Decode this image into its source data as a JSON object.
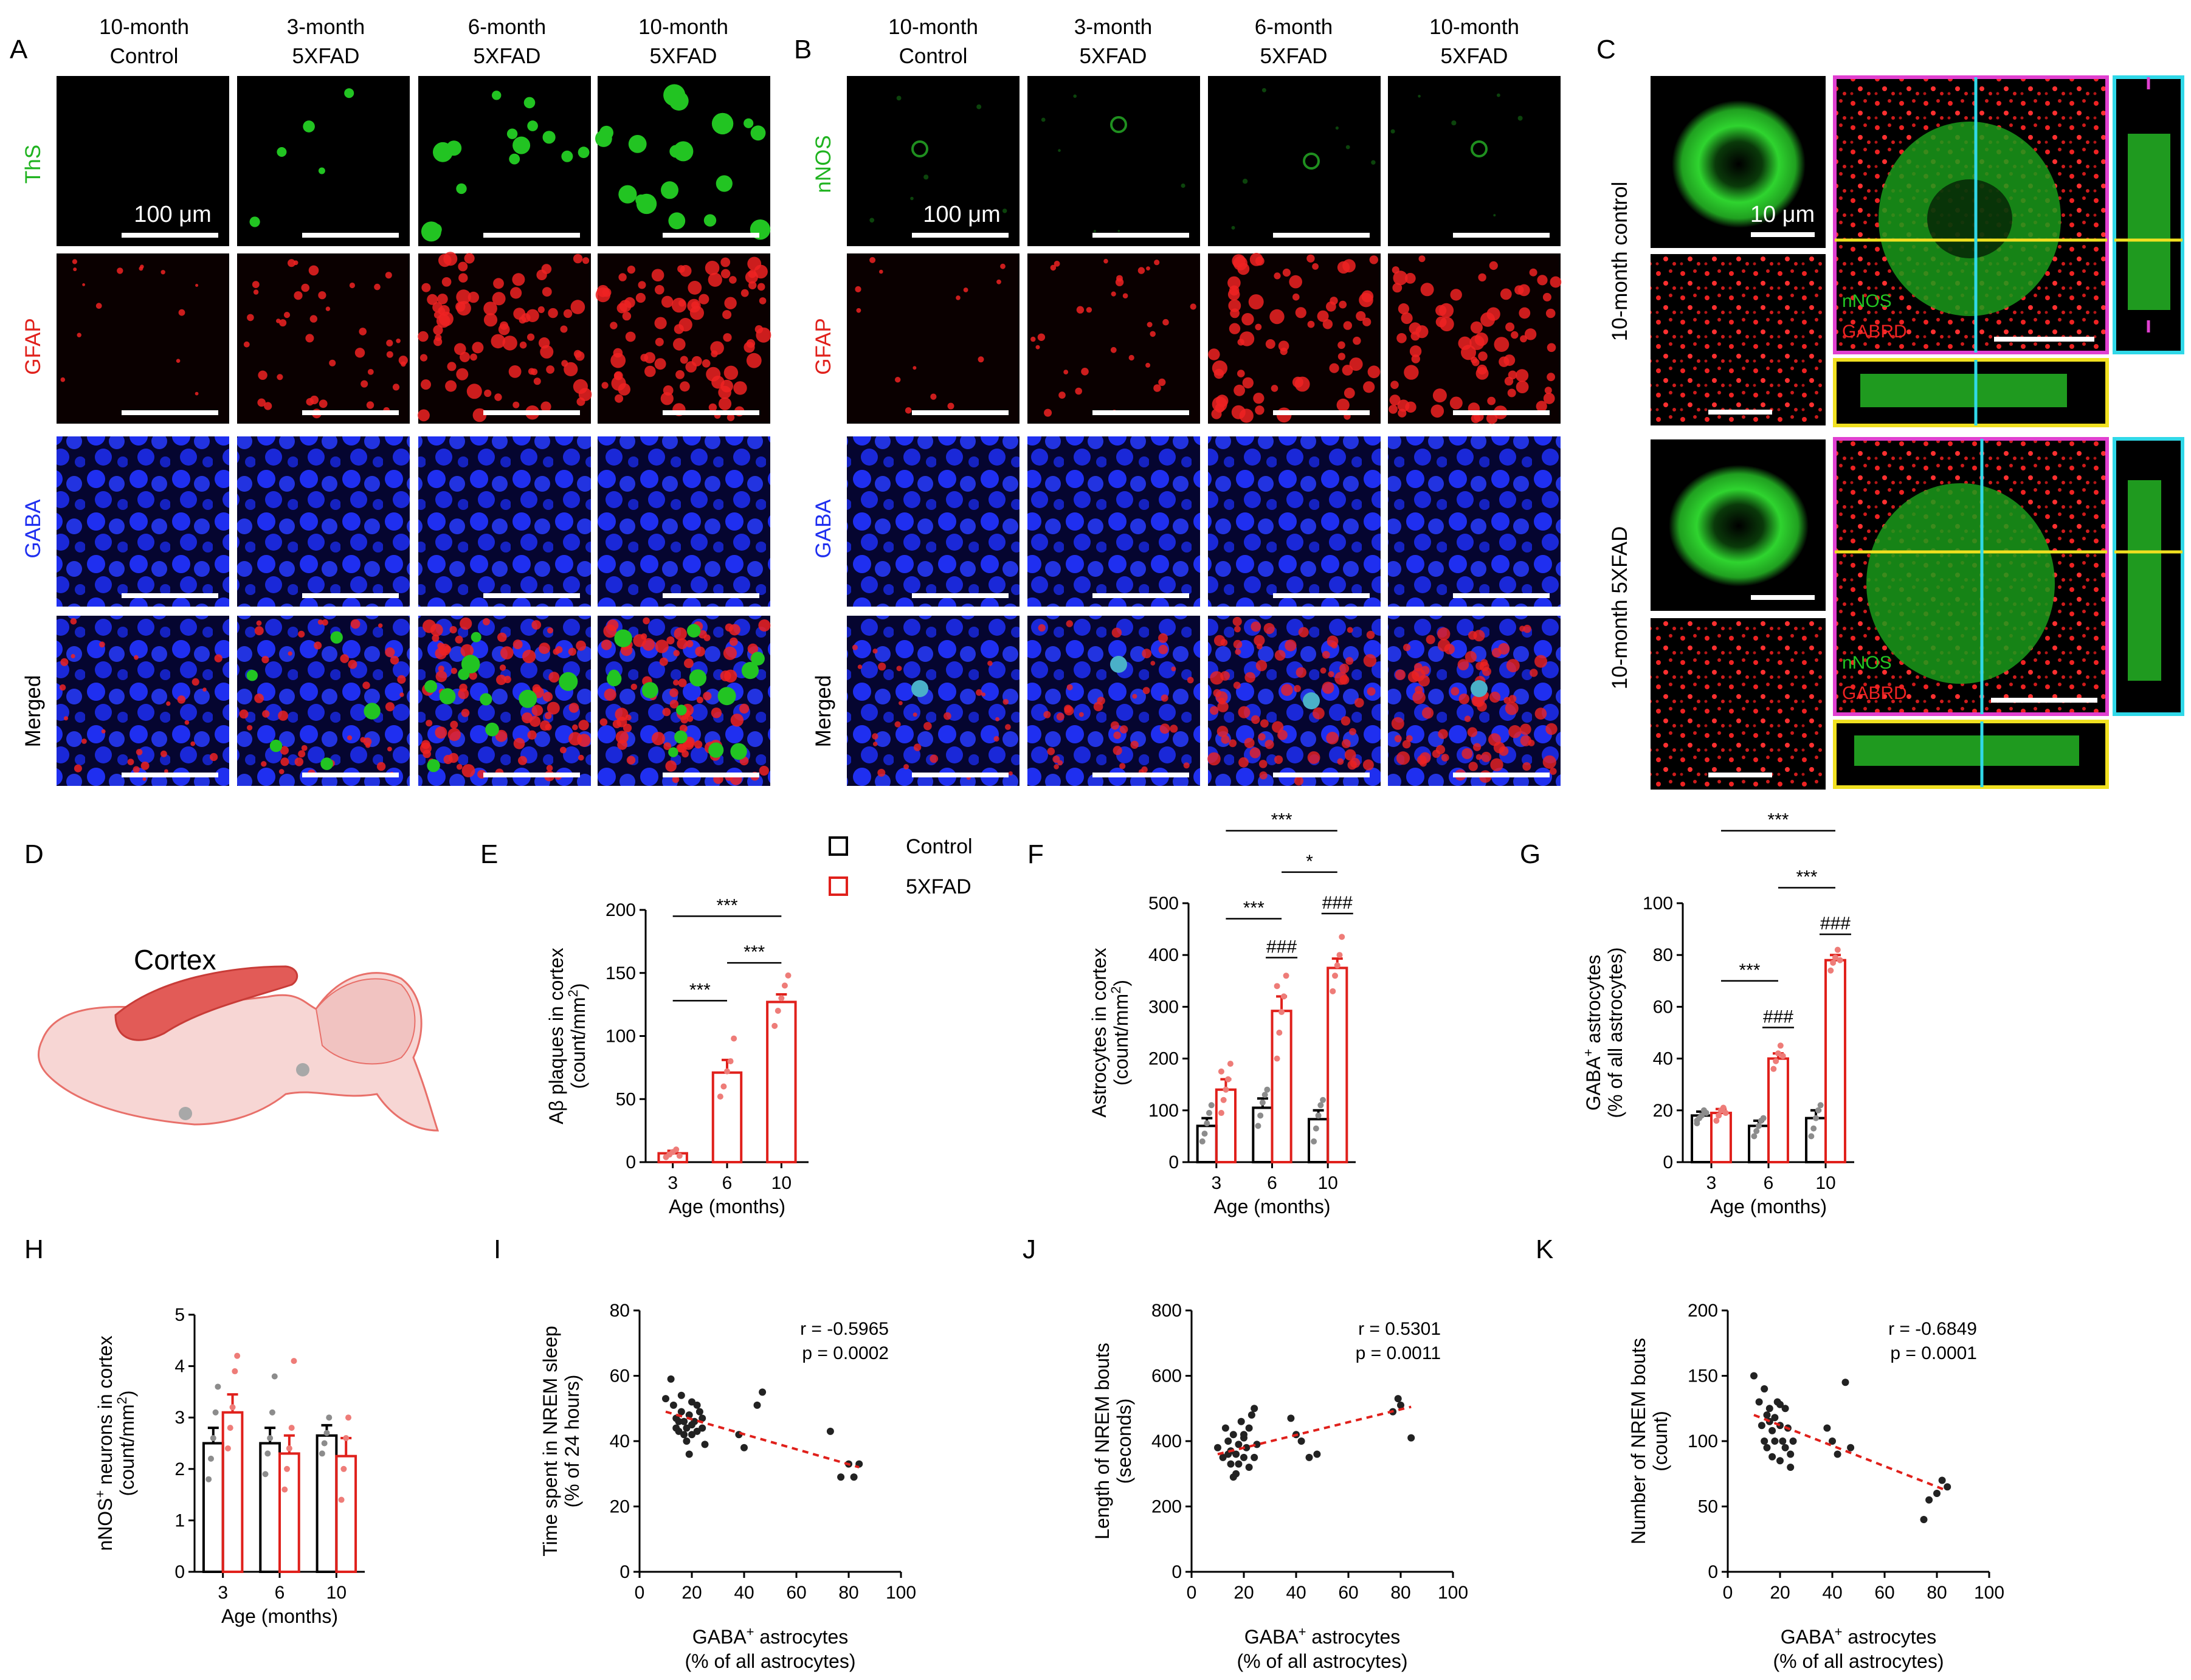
{
  "panels": {
    "A": "A",
    "B": "B",
    "C": "C",
    "D": "D",
    "E": "E",
    "F": "F",
    "G": "G",
    "H": "H",
    "I": "I",
    "J": "J",
    "K": "K"
  },
  "colors": {
    "control": "#000000",
    "fad": "#e0201b",
    "dot_control": "#8c8c8c",
    "dot_fad": "#ee7c78",
    "regression": "#e0201b",
    "scatter_dot": "#222222",
    "green": "#22c422",
    "red": "#ee2222",
    "blue": "#1f2ff0",
    "magenta": "#e040d0",
    "cyan": "#30d8e8",
    "yellow": "#f0e020"
  },
  "micro": {
    "col_headers": [
      {
        "line1": "10-month",
        "line2": "Control"
      },
      {
        "line1": "3-month",
        "line2": "5XFAD"
      },
      {
        "line1": "6-month",
        "line2": "5XFAD"
      },
      {
        "line1": "10-month",
        "line2": "5XFAD"
      }
    ],
    "rows_A": [
      "ThS",
      "GFAP",
      "GABA",
      "Merged"
    ],
    "rows_B": [
      "nNOS",
      "GFAP",
      "GABA",
      "Merged"
    ],
    "scale_A": "100 μm",
    "scale_B": "100 μm",
    "scale_C": "10 μm",
    "C_rows": [
      "10-month control",
      "10-month 5XFAD"
    ],
    "C_ortho_label1": "nNOS",
    "C_ortho_label2": "GABRD"
  },
  "diagram": {
    "region_label": "Cortex"
  },
  "legend": {
    "control": "Control",
    "fad": "5XFAD"
  },
  "chart_data": [
    {
      "panel": "E",
      "type": "bar",
      "categories": [
        "3",
        "6",
        "10"
      ],
      "xlabel": "Age (months)",
      "ylabel_line1": "Aβ plaques in cortex",
      "ylabel_line2": "(count/mm",
      "ylabel_sup": "2",
      "ylabel_end": ")",
      "ylim": [
        0,
        200
      ],
      "yticks": [
        0,
        50,
        100,
        150,
        200
      ],
      "series": [
        {
          "name": "5XFAD",
          "values": [
            7,
            71,
            127
          ],
          "errors": [
            2,
            10,
            6
          ],
          "points": [
            [
              4,
              6,
              8,
              10,
              5
            ],
            [
              52,
              60,
              72,
              80,
              98
            ],
            [
              108,
              120,
              130,
              140,
              148
            ]
          ]
        }
      ],
      "significance": [
        {
          "from": 0,
          "to": 1,
          "label": "***",
          "level": 128
        },
        {
          "from": 1,
          "to": 2,
          "label": "***",
          "level": 158
        },
        {
          "from": 0,
          "to": 2,
          "label": "***",
          "level": 195
        }
      ]
    },
    {
      "panel": "F",
      "type": "bar",
      "categories": [
        "3",
        "6",
        "10"
      ],
      "xlabel": "Age (months)",
      "ylabel_line1": "Astrocytes in cortex",
      "ylabel_line2": "(count/mm",
      "ylabel_sup": "2",
      "ylabel_end": ")",
      "ylim": [
        0,
        500
      ],
      "yticks": [
        0,
        100,
        200,
        300,
        400,
        500
      ],
      "series": [
        {
          "name": "Control",
          "values": [
            70,
            105,
            83
          ],
          "errors": [
            15,
            18,
            17
          ],
          "points": [
            [
              40,
              55,
              75,
              95,
              110
            ],
            [
              70,
              90,
              115,
              130,
              140
            ],
            [
              40,
              65,
              90,
              110,
              120
            ]
          ]
        },
        {
          "name": "5XFAD",
          "values": [
            140,
            292,
            375
          ],
          "errors": [
            20,
            28,
            18
          ],
          "points": [
            [
              95,
              120,
              140,
              160,
              190,
              175
            ],
            [
              200,
              250,
              290,
              320,
              360,
              340
            ],
            [
              330,
              360,
              380,
              400,
              435
            ]
          ]
        }
      ],
      "significance_hash": [
        {
          "group": 1,
          "label": "###",
          "level": 395
        },
        {
          "group": 2,
          "label": "###",
          "level": 480
        }
      ],
      "significance": [
        {
          "from": 0,
          "to": 1,
          "label": "***",
          "level": 470
        },
        {
          "from": 1,
          "to": 2,
          "label": "*",
          "level": 560
        },
        {
          "from": 0,
          "to": 2,
          "label": "***",
          "level": 640
        }
      ]
    },
    {
      "panel": "G",
      "type": "bar",
      "categories": [
        "3",
        "6",
        "10"
      ],
      "xlabel": "Age (months)",
      "ylabel_line1": "GABA",
      "ylabel_sup1": "+",
      "ylabel_line1_end": " astrocytes",
      "ylabel_line2": "(% of all astrocytes)",
      "ylim": [
        0,
        100
      ],
      "yticks": [
        0,
        20,
        40,
        60,
        80,
        100
      ],
      "series": [
        {
          "name": "Control",
          "values": [
            18,
            14,
            17
          ],
          "errors": [
            1.5,
            2,
            3
          ],
          "points": [
            [
              15,
              17,
              18,
              20,
              19,
              16
            ],
            [
              10,
              12,
              14,
              16,
              17
            ],
            [
              10,
              13,
              17,
              20,
              22
            ]
          ]
        },
        {
          "name": "5XFAD",
          "values": [
            19,
            40,
            78
          ],
          "errors": [
            1.5,
            2,
            2
          ],
          "points": [
            [
              16,
              18,
              20,
              21,
              19
            ],
            [
              36,
              39,
              42,
              45,
              41
            ],
            [
              74,
              77,
              79,
              82,
              78
            ]
          ]
        }
      ],
      "significance_hash": [
        {
          "group": 1,
          "label": "###",
          "level": 52
        },
        {
          "group": 2,
          "label": "###",
          "level": 88
        }
      ],
      "significance": [
        {
          "from": 0,
          "to": 1,
          "label": "***",
          "level": 70
        },
        {
          "from": 1,
          "to": 2,
          "label": "***",
          "level": 106
        },
        {
          "from": 0,
          "to": 2,
          "label": "***",
          "level": 128
        }
      ]
    },
    {
      "panel": "H",
      "type": "bar",
      "categories": [
        "3",
        "6",
        "10"
      ],
      "xlabel": "Age (months)",
      "ylabel_line1": "nNOS",
      "ylabel_sup1": "+",
      "ylabel_line1_end": " neurons in cortex",
      "ylabel_line2": "(count/mm",
      "ylabel_sup": "2",
      "ylabel_end": ")",
      "ylim": [
        0,
        5
      ],
      "yticks": [
        0,
        1,
        2,
        3,
        4,
        5
      ],
      "series": [
        {
          "name": "Control",
          "values": [
            2.5,
            2.5,
            2.65
          ],
          "errors": [
            0.3,
            0.3,
            0.2
          ],
          "points": [
            [
              1.8,
              2.2,
              2.6,
              3.1,
              3.6
            ],
            [
              1.9,
              2.3,
              2.6,
              3.1,
              3.8
            ],
            [
              2.3,
              2.5,
              2.7,
              3.0
            ]
          ]
        },
        {
          "name": "5XFAD",
          "values": [
            3.1,
            2.3,
            2.25
          ],
          "errors": [
            0.35,
            0.35,
            0.35
          ],
          "points": [
            [
              2.4,
              2.8,
              3.2,
              3.9,
              4.2
            ],
            [
              1.6,
              2.0,
              2.4,
              2.8,
              4.1
            ],
            [
              1.4,
              2.0,
              2.6,
              3.0
            ]
          ]
        }
      ]
    },
    {
      "panel": "I",
      "type": "scatter",
      "xlabel_line1": "GABA",
      "xlabel_sup": "+",
      "xlabel_line1_end": " astrocytes",
      "xlabel_line2": "(% of all astrocytes)",
      "ylabel_line1": "Time spent in NREM sleep",
      "ylabel_line2": "(% of 24 hours)",
      "xlim": [
        0,
        100
      ],
      "xticks": [
        0,
        20,
        40,
        60,
        80,
        100
      ],
      "ylim": [
        0,
        80
      ],
      "yticks": [
        0,
        20,
        40,
        60,
        80
      ],
      "stat_r": "r = -0.5965",
      "stat_p": "p = 0.0002",
      "fit": {
        "x0": 10,
        "y0": 49,
        "x1": 84,
        "y1": 32
      },
      "points": [
        [
          10,
          53
        ],
        [
          12,
          59
        ],
        [
          13,
          51
        ],
        [
          14,
          47
        ],
        [
          15,
          46
        ],
        [
          15,
          43
        ],
        [
          16,
          54
        ],
        [
          17,
          46
        ],
        [
          17,
          42
        ],
        [
          18,
          44
        ],
        [
          18,
          40
        ],
        [
          19,
          36
        ],
        [
          19,
          48
        ],
        [
          20,
          45
        ],
        [
          20,
          42
        ],
        [
          21,
          46
        ],
        [
          22,
          43
        ],
        [
          22,
          51
        ],
        [
          23,
          49
        ],
        [
          24,
          44
        ],
        [
          24,
          47
        ],
        [
          25,
          39
        ],
        [
          20,
          52
        ],
        [
          16,
          49
        ],
        [
          14,
          44
        ],
        [
          38,
          42
        ],
        [
          40,
          38
        ],
        [
          45,
          51
        ],
        [
          47,
          55
        ],
        [
          73,
          43
        ],
        [
          77,
          29
        ],
        [
          80,
          33
        ],
        [
          82,
          29
        ],
        [
          84,
          33
        ]
      ]
    },
    {
      "panel": "J",
      "type": "scatter",
      "xlabel_line1": "GABA",
      "xlabel_sup": "+",
      "xlabel_line1_end": " astrocytes",
      "xlabel_line2": "(% of all astrocytes)",
      "ylabel_line1": "Length of NREM bouts",
      "ylabel_line2": "(seconds)",
      "xlim": [
        0,
        100
      ],
      "xticks": [
        0,
        20,
        40,
        60,
        80,
        100
      ],
      "ylim": [
        0,
        800
      ],
      "yticks": [
        0,
        200,
        400,
        600,
        800
      ],
      "stat_r": "r = 0.5301",
      "stat_p": "p = 0.0011",
      "fit": {
        "x0": 10,
        "y0": 360,
        "x1": 84,
        "y1": 505
      },
      "points": [
        [
          10,
          380
        ],
        [
          12,
          350
        ],
        [
          13,
          440
        ],
        [
          14,
          400
        ],
        [
          15,
          330
        ],
        [
          15,
          370
        ],
        [
          16,
          420
        ],
        [
          17,
          360
        ],
        [
          17,
          300
        ],
        [
          18,
          390
        ],
        [
          18,
          330
        ],
        [
          19,
          460
        ],
        [
          20,
          350
        ],
        [
          20,
          410
        ],
        [
          21,
          380
        ],
        [
          22,
          440
        ],
        [
          22,
          320
        ],
        [
          23,
          480
        ],
        [
          24,
          500
        ],
        [
          24,
          350
        ],
        [
          25,
          390
        ],
        [
          16,
          290
        ],
        [
          14,
          360
        ],
        [
          20,
          420
        ],
        [
          38,
          470
        ],
        [
          40,
          420
        ],
        [
          42,
          400
        ],
        [
          45,
          350
        ],
        [
          48,
          360
        ],
        [
          77,
          490
        ],
        [
          79,
          530
        ],
        [
          80,
          510
        ],
        [
          84,
          410
        ]
      ]
    },
    {
      "panel": "K",
      "type": "scatter",
      "xlabel_line1": "GABA",
      "xlabel_sup": "+",
      "xlabel_line1_end": " astrocytes",
      "xlabel_line2": "(% of all astrocytes)",
      "ylabel_line1": "Number of NREM bouts",
      "ylabel_line2": "(count)",
      "xlim": [
        0,
        100
      ],
      "xticks": [
        0,
        20,
        40,
        60,
        80,
        100
      ],
      "ylim": [
        0,
        200
      ],
      "yticks": [
        0,
        50,
        100,
        150,
        200
      ],
      "stat_r": "r = -0.6849",
      "stat_p": "p = 0.0001",
      "fit": {
        "x0": 10,
        "y0": 120,
        "x1": 84,
        "y1": 62
      },
      "points": [
        [
          10,
          150
        ],
        [
          12,
          130
        ],
        [
          13,
          112
        ],
        [
          14,
          100
        ],
        [
          15,
          120
        ],
        [
          15,
          95
        ],
        [
          16,
          125
        ],
        [
          17,
          108
        ],
        [
          17,
          88
        ],
        [
          18,
          118
        ],
        [
          18,
          100
        ],
        [
          19,
          130
        ],
        [
          20,
          112
        ],
        [
          20,
          85
        ],
        [
          21,
          100
        ],
        [
          22,
          125
        ],
        [
          22,
          95
        ],
        [
          23,
          110
        ],
        [
          24,
          80
        ],
        [
          24,
          90
        ],
        [
          25,
          100
        ],
        [
          16,
          115
        ],
        [
          14,
          140
        ],
        [
          20,
          128
        ],
        [
          38,
          110
        ],
        [
          40,
          100
        ],
        [
          42,
          90
        ],
        [
          45,
          145
        ],
        [
          47,
          95
        ],
        [
          75,
          40
        ],
        [
          77,
          55
        ],
        [
          80,
          60
        ],
        [
          82,
          70
        ],
        [
          84,
          65
        ]
      ]
    }
  ]
}
